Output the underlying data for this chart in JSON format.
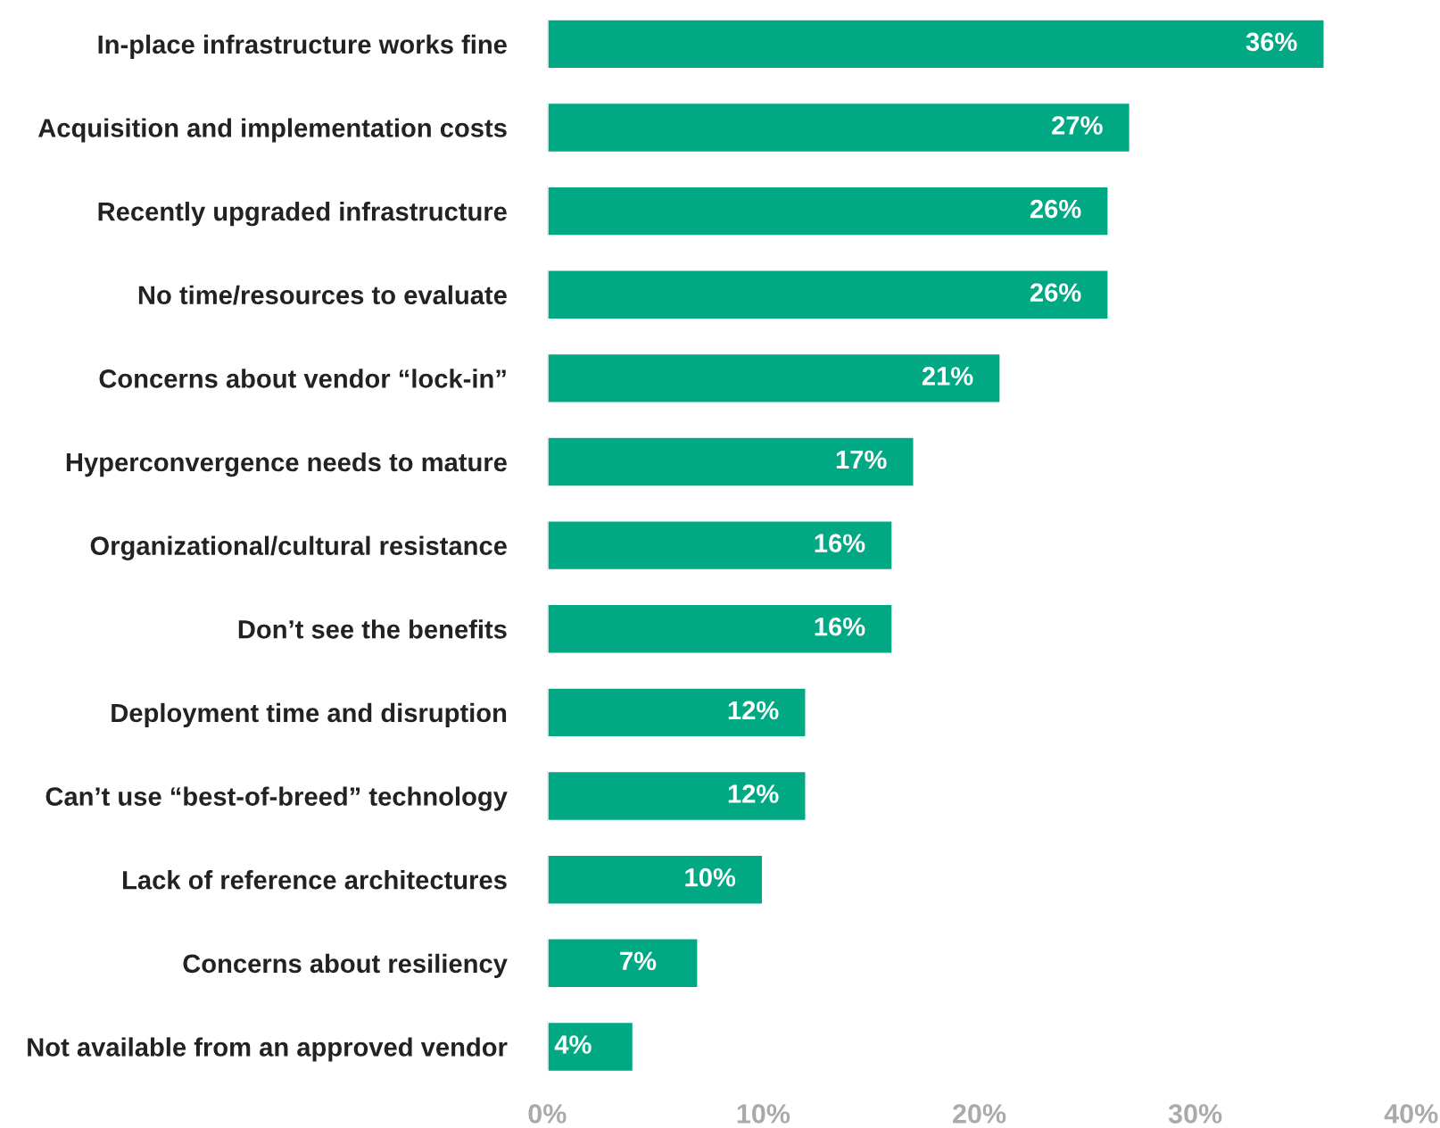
{
  "chart_data": {
    "type": "bar",
    "orientation": "horizontal",
    "categories": [
      "In-place infrastructure works fine",
      "Acquisition and implementation costs",
      "Recently upgraded infrastructure",
      "No time/resources to evaluate",
      "Concerns about vendor “lock-in”",
      "Hyperconvergence needs to mature",
      "Organizational/cultural resistance",
      "Don’t see the benefits",
      "Deployment time and disruption",
      "Can’t use “best-of-breed” technology",
      "Lack of reference architectures",
      "Concerns about resiliency",
      "Not available from an approved vendor"
    ],
    "values": [
      36,
      27,
      26,
      26,
      21,
      17,
      16,
      16,
      12,
      12,
      10,
      7,
      4
    ],
    "value_labels": [
      "36%",
      "27%",
      "26%",
      "26%",
      "21%",
      "17%",
      "16%",
      "16%",
      "12%",
      "12%",
      "10%",
      "7%",
      "4%"
    ],
    "color": "#00a984",
    "xlim": [
      0,
      40
    ],
    "xticks": [
      {
        "value": 0,
        "label": "0%"
      },
      {
        "value": 10,
        "label": "10%"
      },
      {
        "value": 20,
        "label": "20%"
      },
      {
        "value": 30,
        "label": "30%"
      },
      {
        "value": 40,
        "label": "40%"
      }
    ],
    "grid": false,
    "legend": false
  }
}
